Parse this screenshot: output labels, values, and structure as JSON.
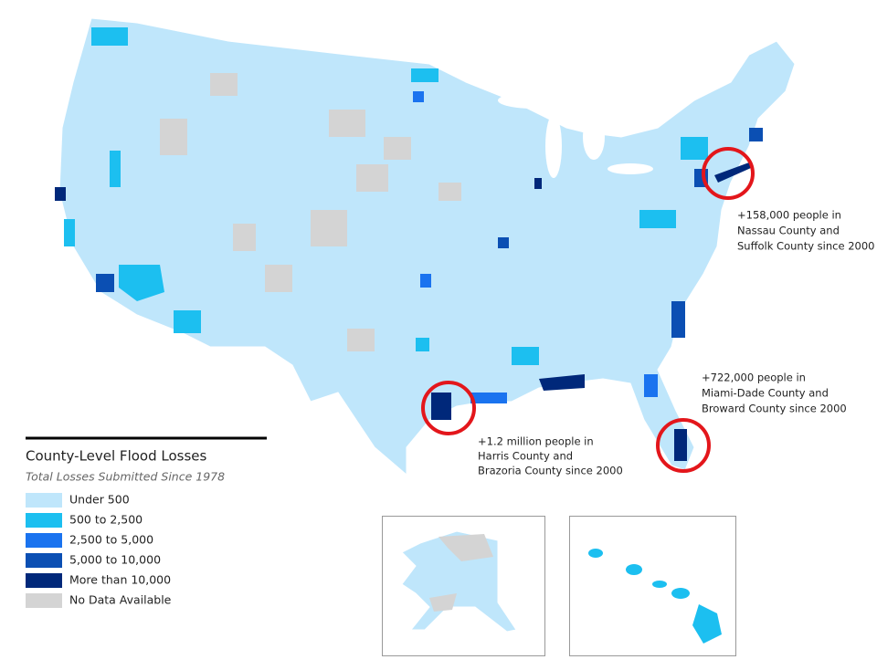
{
  "legend": {
    "title": "County-Level Flood Losses",
    "subtitle": "Total Losses Submitted Since 1978",
    "items": [
      {
        "label": "Under 500",
        "color": "#bfe6fb"
      },
      {
        "label": "500 to 2,500",
        "color": "#1cbff0"
      },
      {
        "label": "2,500 to 5,000",
        "color": "#1a73ef"
      },
      {
        "label": "5,000 to 10,000",
        "color": "#0b4fb3"
      },
      {
        "label": "More than 10,000",
        "color": "#00287a"
      },
      {
        "label": "No Data Available",
        "color": "#d4d4d4"
      }
    ]
  },
  "annotations": [
    {
      "lines": [
        "+158,000 people in",
        "Nassau County and",
        "Suffolk County since 2000"
      ]
    },
    {
      "lines": [
        "+722,000 people in",
        "Miami-Dade County and",
        "Broward County since 2000"
      ]
    },
    {
      "lines": [
        "+1.2 million people in",
        "Harris County and",
        "Brazoria County since 2000"
      ]
    }
  ]
}
